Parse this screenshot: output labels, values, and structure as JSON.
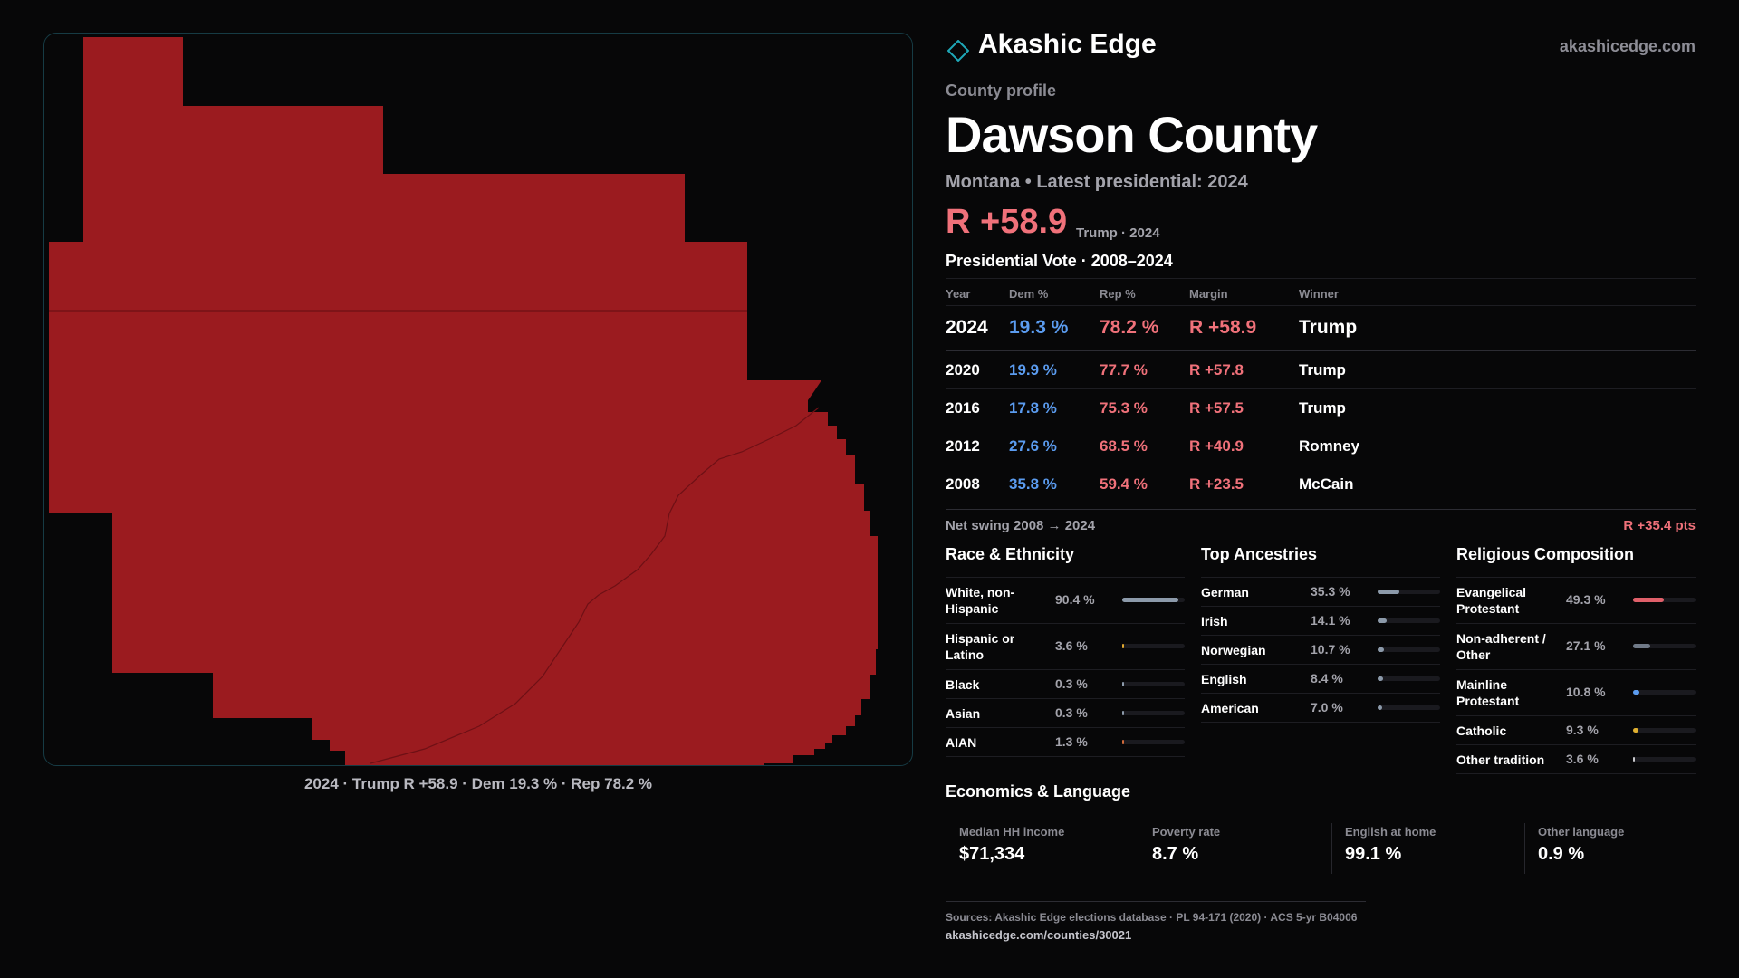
{
  "brand": {
    "name": "Akashic Edge",
    "url": "akashicedge.com"
  },
  "profile": {
    "eyebrow": "County profile",
    "county": "Dawson County",
    "subline": "Montana • Latest presidential: 2024",
    "margin": "R +58.9",
    "margin_note": "Trump · 2024"
  },
  "map": {
    "fill_color": "#9b1b1f",
    "caption": "2024 · Trump R +58.9 · Dem 19.3 % · Rep 78.2 %"
  },
  "presidential": {
    "title": "Presidential Vote · 2008–2024",
    "headers": {
      "year": "Year",
      "dem": "Dem %",
      "rep": "Rep %",
      "margin": "Margin",
      "winner": "Winner"
    },
    "rows": [
      {
        "year": "2024",
        "dem": "19.3 %",
        "rep": "78.2 %",
        "margin": "R +58.9",
        "winner": "Trump"
      },
      {
        "year": "2020",
        "dem": "19.9 %",
        "rep": "77.7 %",
        "margin": "R +57.8",
        "winner": "Trump"
      },
      {
        "year": "2016",
        "dem": "17.8 %",
        "rep": "75.3 %",
        "margin": "R +57.5",
        "winner": "Trump"
      },
      {
        "year": "2012",
        "dem": "27.6 %",
        "rep": "68.5 %",
        "margin": "R +40.9",
        "winner": "Romney"
      },
      {
        "year": "2008",
        "dem": "35.8 %",
        "rep": "59.4 %",
        "margin": "R +23.5",
        "winner": "McCain"
      }
    ],
    "swing_label": "Net swing 2008 → 2024",
    "swing_value": "R +35.4 pts"
  },
  "race": {
    "title": "Race & Ethnicity",
    "items": [
      {
        "label": "White, non-Hispanic",
        "value": "90.4 %",
        "fraction": 0.904,
        "color": "#8c9aaa"
      },
      {
        "label": "Hispanic or Latino",
        "value": "3.6 %",
        "fraction": 0.036,
        "color": "#e0a830"
      },
      {
        "label": "Black",
        "value": "0.3 %",
        "fraction": 0.003,
        "color": "#8c9aaa"
      },
      {
        "label": "Asian",
        "value": "0.3 %",
        "fraction": 0.003,
        "color": "#8c9aaa"
      },
      {
        "label": "AIAN",
        "value": "1.3 %",
        "fraction": 0.013,
        "color": "#d06a3a"
      }
    ]
  },
  "ancestry": {
    "title": "Top Ancestries",
    "items": [
      {
        "label": "German",
        "value": "35.3 %",
        "fraction": 0.353,
        "color": "#8c9aaa"
      },
      {
        "label": "Irish",
        "value": "14.1 %",
        "fraction": 0.141,
        "color": "#8c9aaa"
      },
      {
        "label": "Norwegian",
        "value": "10.7 %",
        "fraction": 0.107,
        "color": "#8c9aaa"
      },
      {
        "label": "English",
        "value": "8.4 %",
        "fraction": 0.084,
        "color": "#8c9aaa"
      },
      {
        "label": "American",
        "value": "7.0 %",
        "fraction": 0.07,
        "color": "#8c9aaa"
      }
    ]
  },
  "religion": {
    "title": "Religious Composition",
    "items": [
      {
        "label": "Evangelical Protestant",
        "value": "49.3 %",
        "fraction": 0.493,
        "color": "#e0606a"
      },
      {
        "label": "Non-adherent / Other",
        "value": "27.1 %",
        "fraction": 0.271,
        "color": "#707a88"
      },
      {
        "label": "Mainline Protestant",
        "value": "10.8 %",
        "fraction": 0.108,
        "color": "#5b9cf0"
      },
      {
        "label": "Catholic",
        "value": "9.3 %",
        "fraction": 0.093,
        "color": "#e0b030"
      },
      {
        "label": "Other tradition",
        "value": "3.6 %",
        "fraction": 0.036,
        "color": "#c8c8cc"
      }
    ]
  },
  "economics": {
    "title": "Economics & Language",
    "items": [
      {
        "label": "Median HH income",
        "value": "$71,334"
      },
      {
        "label": "Poverty rate",
        "value": "8.7 %"
      },
      {
        "label": "English at home",
        "value": "99.1 %"
      },
      {
        "label": "Other language",
        "value": "0.9 %"
      }
    ]
  },
  "sources": {
    "line": "Sources: Akashic Edge elections database · PL 94-171 (2020) · ACS 5-yr B04006",
    "url": "akashicedge.com/counties/30021"
  }
}
